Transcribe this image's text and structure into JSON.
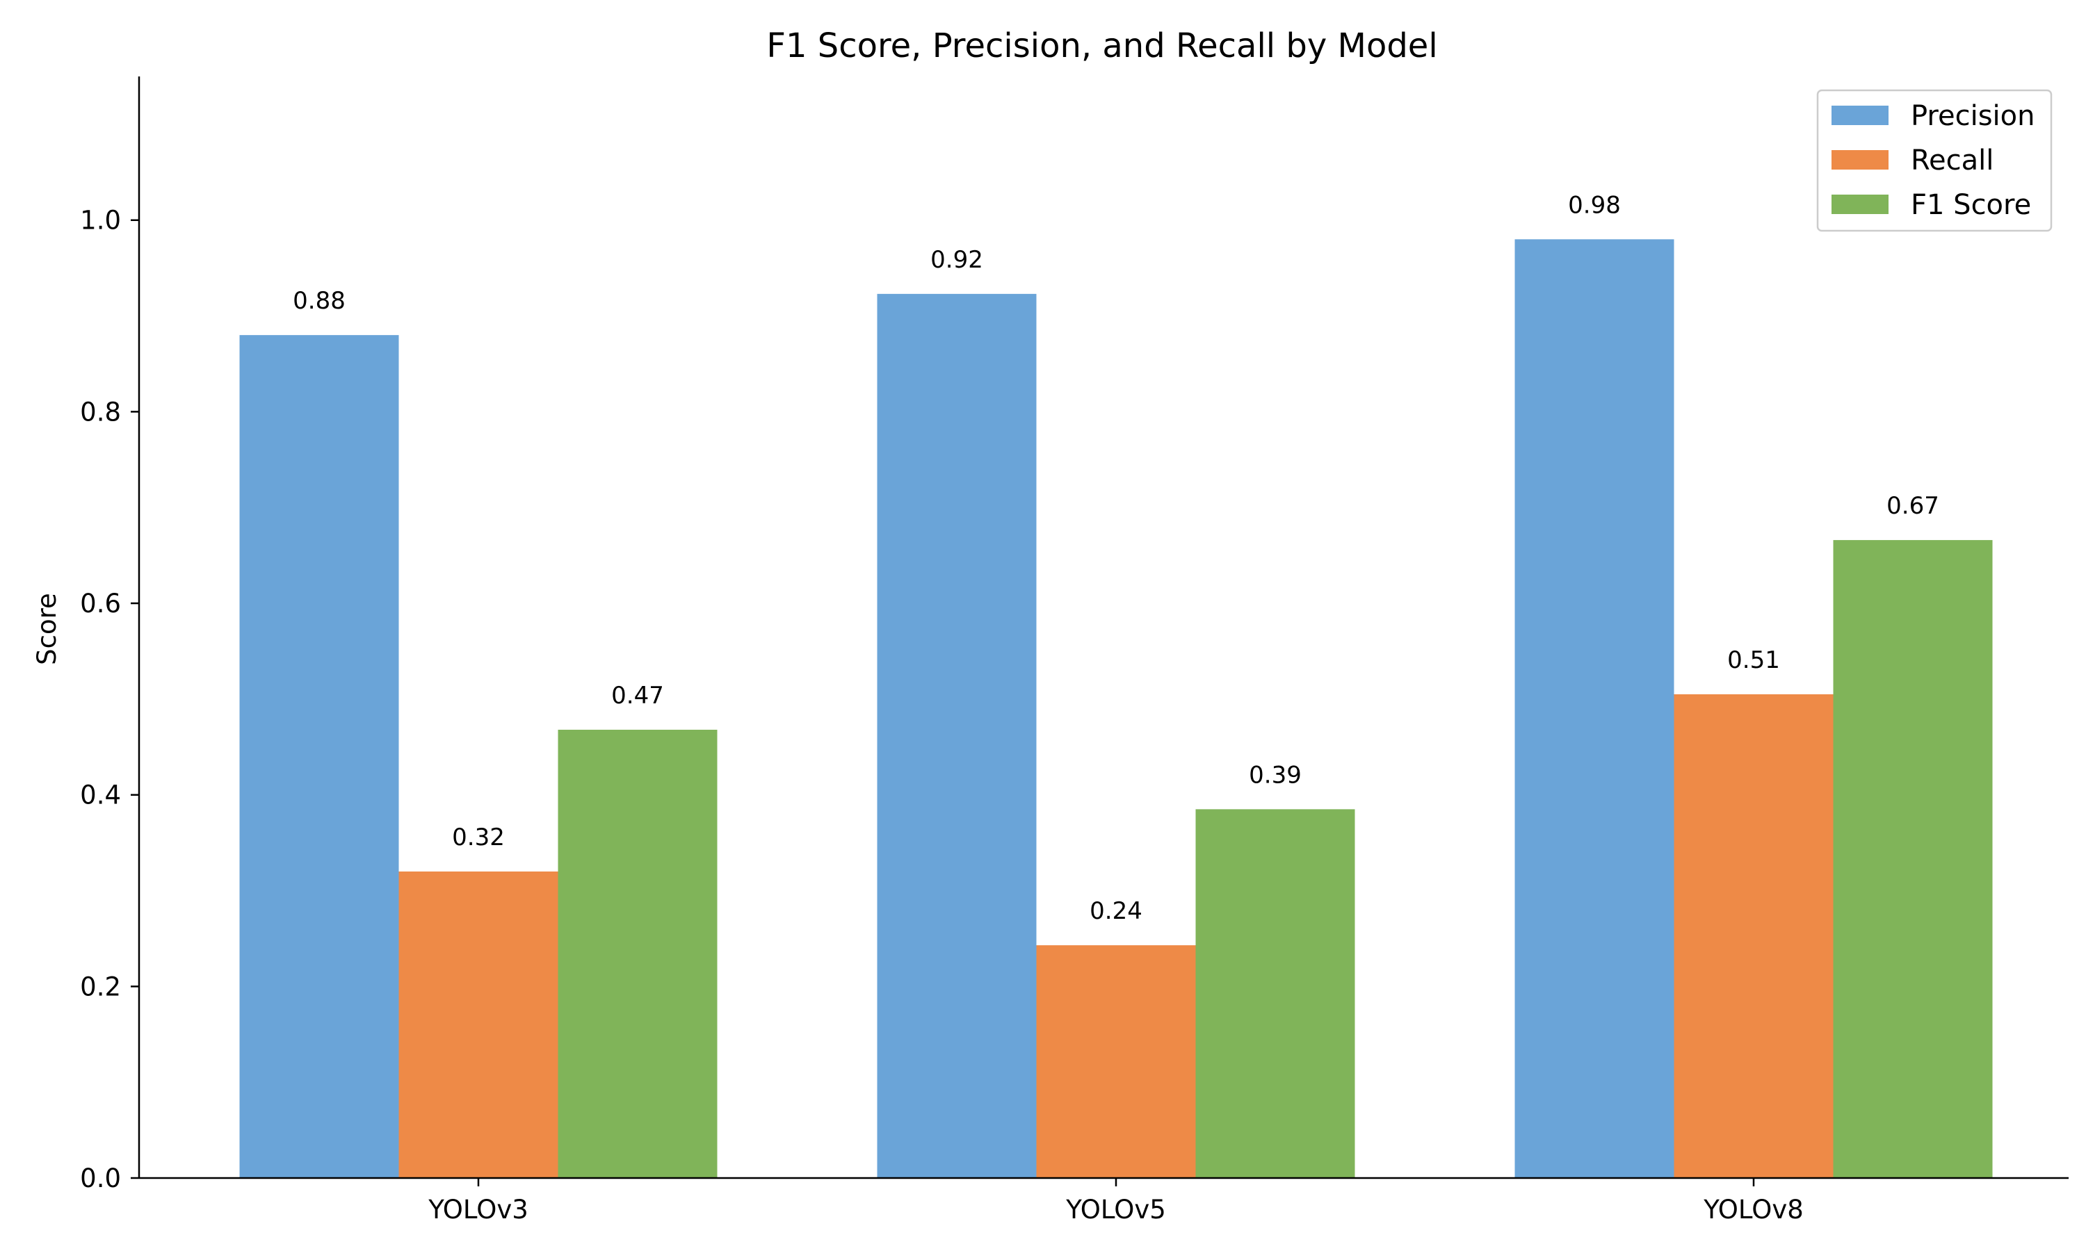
{
  "chart_data": {
    "type": "bar",
    "title": "F1 Score, Precision, and Recall by Model",
    "xlabel": "",
    "ylabel": "Score",
    "categories": [
      "YOLOv3",
      "YOLOv5",
      "YOLOv8"
    ],
    "series": [
      {
        "name": "Precision",
        "color": "#6aa4d8",
        "values": [
          0.88,
          0.923,
          0.98
        ],
        "labels": [
          "0.88",
          "0.92",
          "0.98"
        ]
      },
      {
        "name": "Recall",
        "color": "#ee8a47",
        "values": [
          0.32,
          0.243,
          0.505
        ],
        "labels": [
          "0.32",
          "0.24",
          "0.51"
        ]
      },
      {
        "name": "F1 Score",
        "color": "#80b459",
        "values": [
          0.468,
          0.385,
          0.666
        ],
        "labels": [
          "0.47",
          "0.39",
          "0.67"
        ]
      }
    ],
    "ylim": [
      0,
      1.15
    ],
    "yticks": [
      0.0,
      0.2,
      0.4,
      0.6,
      0.8,
      1.0
    ],
    "ytick_labels": [
      "0.0",
      "0.2",
      "0.4",
      "0.6",
      "0.8",
      "1.0"
    ],
    "grid": false,
    "legend_position": "top-right"
  }
}
